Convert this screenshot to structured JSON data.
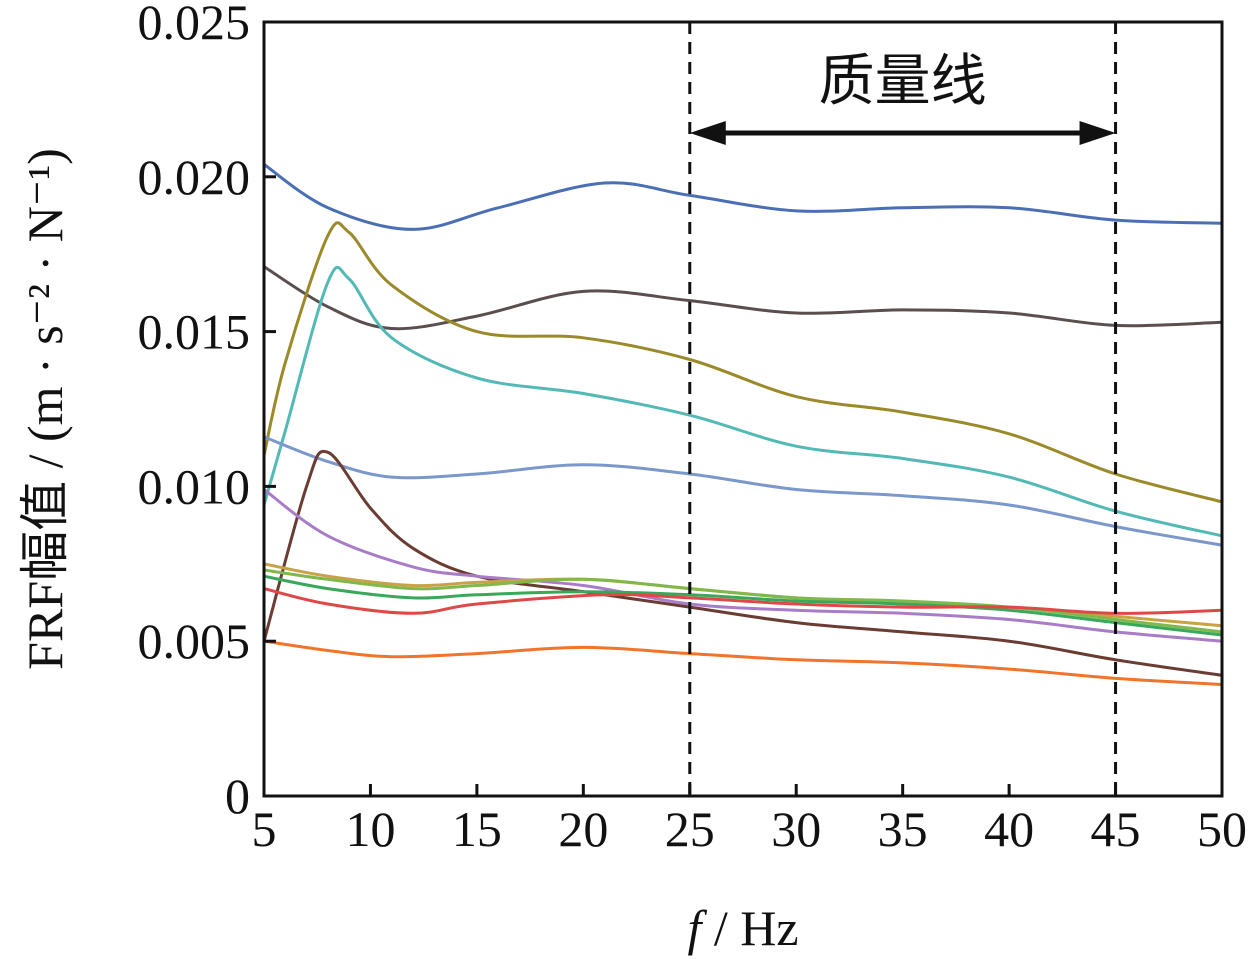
{
  "chart_data": {
    "type": "line",
    "xlabel_italic": "f",
    "xlabel_rest": " / Hz",
    "ylabel": "FRF幅值 / (m · s⁻² · N⁻¹)",
    "xlim": [
      5,
      50
    ],
    "ylim": [
      0,
      0.025
    ],
    "x_ticks": [
      5,
      10,
      15,
      20,
      25,
      30,
      35,
      40,
      45,
      50
    ],
    "y_ticks": [
      0,
      0.005,
      0.01,
      0.015,
      0.02,
      0.025
    ],
    "y_tick_labels": [
      "0",
      "0.005",
      "0.010",
      "0.015",
      "0.020",
      "0.025"
    ],
    "grid": false,
    "legend": "none",
    "annotation": {
      "text": "质量线",
      "x_start": 25,
      "x_end": 45,
      "style": "dashed vertical lines with double-headed arrow"
    },
    "series": [
      {
        "color": "#4a6fb5",
        "x": [
          5,
          8,
          12,
          16,
          21,
          25,
          30,
          35,
          40,
          45,
          50
        ],
        "values": [
          0.0204,
          0.019,
          0.0183,
          0.019,
          0.0198,
          0.0194,
          0.0189,
          0.019,
          0.019,
          0.0186,
          0.0185
        ]
      },
      {
        "color": "#5a4e4e",
        "x": [
          5,
          8,
          11,
          15,
          20,
          25,
          30,
          35,
          40,
          45,
          50
        ],
        "values": [
          0.0171,
          0.0158,
          0.0151,
          0.0155,
          0.0163,
          0.016,
          0.0156,
          0.0157,
          0.0156,
          0.0152,
          0.0153
        ]
      },
      {
        "color": "#9a8a2a",
        "x": [
          5,
          6,
          8,
          9,
          11,
          15,
          20,
          25,
          30,
          35,
          40,
          45,
          50
        ],
        "values": [
          0.011,
          0.014,
          0.0181,
          0.0182,
          0.0165,
          0.015,
          0.0148,
          0.0141,
          0.0129,
          0.0124,
          0.0117,
          0.0104,
          0.0095
        ]
      },
      {
        "color": "#52b9b5",
        "x": [
          5,
          6,
          8,
          9,
          11,
          15,
          20,
          25,
          30,
          35,
          40,
          45,
          50
        ],
        "values": [
          0.0094,
          0.0118,
          0.0166,
          0.0167,
          0.0148,
          0.0135,
          0.013,
          0.0123,
          0.0113,
          0.0109,
          0.0103,
          0.0092,
          0.0084
        ]
      },
      {
        "color": "#7b98cc",
        "x": [
          5,
          8,
          11,
          15,
          20,
          25,
          30,
          35,
          40,
          45,
          50
        ],
        "values": [
          0.0116,
          0.0108,
          0.0103,
          0.0104,
          0.0107,
          0.0104,
          0.0099,
          0.0097,
          0.0094,
          0.0087,
          0.0081
        ]
      },
      {
        "color": "#6b3c32",
        "x": [
          5,
          7,
          8,
          10,
          12,
          15,
          20,
          25,
          30,
          35,
          40,
          45,
          50
        ],
        "values": [
          0.005,
          0.01,
          0.0111,
          0.0093,
          0.008,
          0.0071,
          0.0066,
          0.0061,
          0.0056,
          0.0053,
          0.005,
          0.0044,
          0.0039
        ]
      },
      {
        "color": "#a97cc7",
        "x": [
          5,
          8,
          12,
          15,
          20,
          25,
          30,
          35,
          40,
          45,
          50
        ],
        "values": [
          0.0099,
          0.0084,
          0.0074,
          0.0071,
          0.0068,
          0.0062,
          0.006,
          0.0059,
          0.0057,
          0.0053,
          0.005
        ]
      },
      {
        "color": "#c8a245",
        "x": [
          5,
          8,
          12,
          15,
          20,
          25,
          30,
          35,
          40,
          45,
          50
        ],
        "values": [
          0.0075,
          0.0071,
          0.0068,
          0.0069,
          0.007,
          0.0067,
          0.0064,
          0.0062,
          0.0061,
          0.0058,
          0.0055
        ]
      },
      {
        "color": "#80b84d",
        "x": [
          5,
          8,
          12,
          15,
          20,
          25,
          30,
          35,
          40,
          45,
          50
        ],
        "values": [
          0.0073,
          0.007,
          0.0067,
          0.0068,
          0.007,
          0.0067,
          0.0064,
          0.0063,
          0.0061,
          0.0057,
          0.0053
        ]
      },
      {
        "color": "#3aa85a",
        "x": [
          5,
          8,
          12,
          15,
          20,
          25,
          30,
          35,
          40,
          45,
          50
        ],
        "values": [
          0.0071,
          0.0067,
          0.0064,
          0.0065,
          0.0066,
          0.0065,
          0.0063,
          0.0062,
          0.006,
          0.0056,
          0.0052
        ]
      },
      {
        "color": "#e04848",
        "x": [
          5,
          8,
          12,
          15,
          21,
          25,
          30,
          35,
          40,
          45,
          50
        ],
        "values": [
          0.0067,
          0.0062,
          0.0059,
          0.0062,
          0.0065,
          0.0064,
          0.0062,
          0.0061,
          0.0061,
          0.0059,
          0.006
        ]
      },
      {
        "color": "#f0742a",
        "x": [
          5,
          8,
          11,
          15,
          20,
          25,
          30,
          35,
          40,
          45,
          50
        ],
        "values": [
          0.005,
          0.0047,
          0.0045,
          0.0046,
          0.0048,
          0.0046,
          0.0044,
          0.0043,
          0.0041,
          0.0038,
          0.0036
        ]
      }
    ]
  }
}
